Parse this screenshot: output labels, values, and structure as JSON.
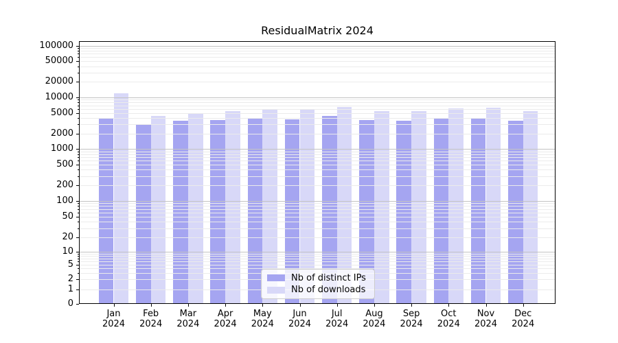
{
  "title": "ResidualMatrix 2024",
  "chart_data": {
    "type": "bar",
    "title": "ResidualMatrix 2024",
    "xlabel": "",
    "ylabel": "",
    "categories": [
      "Jan 2024",
      "Feb 2024",
      "Mar 2024",
      "Apr 2024",
      "May 2024",
      "Jun 2024",
      "Jul 2024",
      "Aug 2024",
      "Sep 2024",
      "Oct 2024",
      "Nov 2024",
      "Dec 2024"
    ],
    "series": [
      {
        "name": "Nb of distinct IPs",
        "color": "#a5a5f1",
        "values": [
          3850,
          2950,
          3550,
          3650,
          3950,
          3800,
          4350,
          3600,
          3550,
          3900,
          4000,
          3500
        ]
      },
      {
        "name": "Nb of downloads",
        "color": "#d8d8f8",
        "values": [
          12000,
          4350,
          4900,
          5450,
          6000,
          5700,
          6600,
          5450,
          5400,
          6100,
          6300,
          5400
        ]
      }
    ],
    "yscale": "symlog",
    "yticks": [
      0,
      1,
      2,
      5,
      10,
      20,
      50,
      100,
      200,
      500,
      1000,
      2000,
      5000,
      10000,
      20000,
      50000,
      100000
    ],
    "ylim": [
      0,
      123000
    ],
    "grid": true,
    "legend_position": "lower center"
  },
  "colors": {
    "grid_major": "#c3c3c3",
    "grid_minor": "#ebebeb",
    "axis": "#000000",
    "background": "#ffffff"
  }
}
